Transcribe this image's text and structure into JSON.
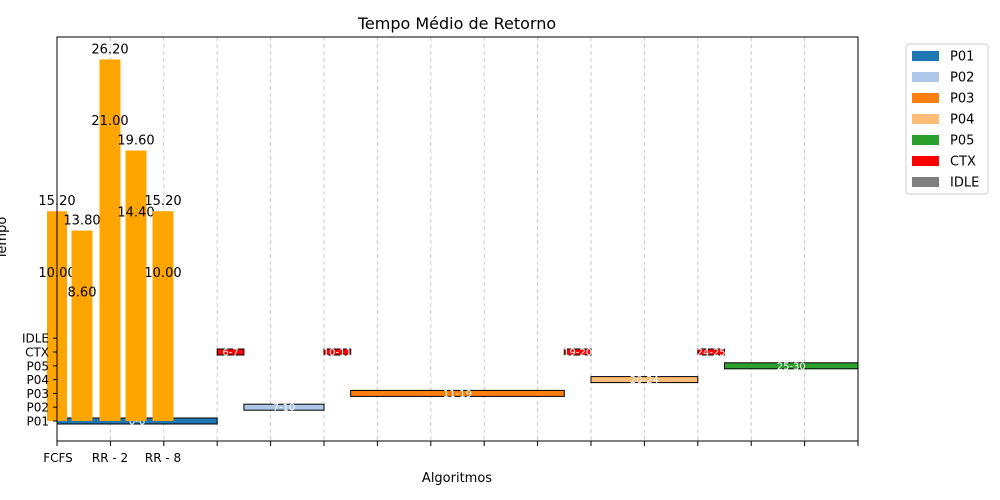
{
  "chart_data": {
    "type": "bar",
    "title": "Tempo Médio de Retorno",
    "xlabel": "Algoritmos",
    "ylabel": "Tempo",
    "x_tick_labels": [
      "FCFS",
      "RR - 2",
      "RR - 8"
    ],
    "y_tick_labels": [
      "P01",
      "P02",
      "P03",
      "P04",
      "P05",
      "CTX",
      "IDLE"
    ],
    "grid": "vertical dashed",
    "legend_position": "outside-right",
    "bars": {
      "color": "#ffa500",
      "values": [
        15.2,
        13.8,
        26.2,
        19.6,
        15.2
      ],
      "inner_labels": [
        "10.00",
        "8.60",
        "21.00",
        "14.40",
        "10.00"
      ]
    },
    "gantt": [
      {
        "process": "P01",
        "start": 0,
        "end": 6,
        "label": "0-6",
        "color": "#1f77b4"
      },
      {
        "process": "CTX",
        "start": 6,
        "end": 7,
        "label": "6-7",
        "color": "#ff0000"
      },
      {
        "process": "P02",
        "start": 7,
        "end": 10,
        "label": "7-10",
        "color": "#aec7e8"
      },
      {
        "process": "CTX",
        "start": 10,
        "end": 11,
        "label": "10-11",
        "color": "#ff0000"
      },
      {
        "process": "P03",
        "start": 11,
        "end": 19,
        "label": "11-19",
        "color": "#ff7f0e"
      },
      {
        "process": "CTX",
        "start": 19,
        "end": 20,
        "label": "19-20",
        "color": "#ff0000"
      },
      {
        "process": "P04",
        "start": 20,
        "end": 24,
        "label": "20-24",
        "color": "#ffbb78"
      },
      {
        "process": "CTX",
        "start": 24,
        "end": 25,
        "label": "24-25",
        "color": "#ff0000"
      },
      {
        "process": "P05",
        "start": 25,
        "end": 30,
        "label": "25-30",
        "color": "#2ca02c"
      }
    ],
    "legend": [
      {
        "name": "P01",
        "color": "#1f77b4"
      },
      {
        "name": "P02",
        "color": "#aec7e8"
      },
      {
        "name": "P03",
        "color": "#ff7f0e"
      },
      {
        "name": "P04",
        "color": "#ffbb78"
      },
      {
        "name": "P05",
        "color": "#2ca02c"
      },
      {
        "name": "CTX",
        "color": "#ff0000"
      },
      {
        "name": "IDLE",
        "color": "#7f7f7f"
      }
    ]
  }
}
